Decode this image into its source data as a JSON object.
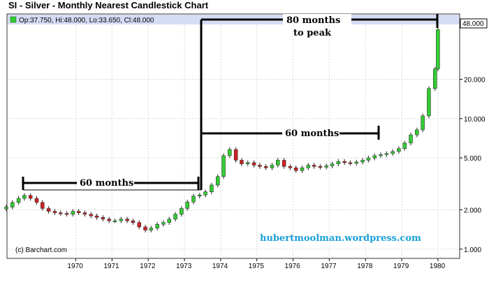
{
  "title": "SI - Silver - Monthly Nearest Candlestick Chart",
  "ohlc_legend": "Op:37.750, Hi:48.000, Lo:33.650, Cl:48.000",
  "credit": "(c) Barchart.com",
  "watermark": "hubertmoolman.wordpress.com",
  "annotations": {
    "peak_label_line1": "80 months",
    "peak_label_line2": "to peak",
    "mid_label": "60 months",
    "left_label": "60 months"
  },
  "colors": {
    "up": "#33cc33",
    "down": "#cc2222",
    "legend_bg": "#d6dcf5",
    "frame": "#333333",
    "grid": "#d8d8d8"
  },
  "chart_data": {
    "type": "candlestick",
    "title": "SI - Silver - Monthly Nearest Candlestick Chart",
    "x_ticks": [
      "1970",
      "1971",
      "1972",
      "1973",
      "1974",
      "1975",
      "1976",
      "1977",
      "1978",
      "1979",
      "1980"
    ],
    "y_ticks": [
      "1.000",
      "2.000",
      "5.000",
      "10.000",
      "20.000"
    ],
    "y_scale": "log",
    "ylim": [
      0.85,
      52
    ],
    "xlim": [
      1968.1,
      1980.6
    ],
    "last_value_label": "48.000",
    "grid": true,
    "series": [
      {
        "name": "",
        "points": [
          [
            1968.08,
            2.1
          ],
          [
            1968.25,
            2.28
          ],
          [
            1968.42,
            2.45
          ],
          [
            1968.58,
            2.58
          ],
          [
            1968.75,
            2.45
          ],
          [
            1968.92,
            2.28
          ],
          [
            1969.08,
            2.05
          ],
          [
            1969.25,
            1.95
          ],
          [
            1969.42,
            1.9
          ],
          [
            1969.58,
            1.88
          ],
          [
            1969.75,
            1.85
          ],
          [
            1969.92,
            1.95
          ],
          [
            1970.08,
            1.9
          ],
          [
            1970.25,
            1.85
          ],
          [
            1970.42,
            1.8
          ],
          [
            1970.58,
            1.75
          ],
          [
            1970.75,
            1.7
          ],
          [
            1970.92,
            1.65
          ],
          [
            1971.08,
            1.65
          ],
          [
            1971.25,
            1.7
          ],
          [
            1971.42,
            1.65
          ],
          [
            1971.58,
            1.6
          ],
          [
            1971.75,
            1.48
          ],
          [
            1971.92,
            1.4
          ],
          [
            1972.08,
            1.45
          ],
          [
            1972.25,
            1.55
          ],
          [
            1972.42,
            1.6
          ],
          [
            1972.58,
            1.7
          ],
          [
            1972.75,
            1.85
          ],
          [
            1972.92,
            2.05
          ],
          [
            1973.08,
            2.3
          ],
          [
            1973.25,
            2.55
          ],
          [
            1973.42,
            2.6
          ],
          [
            1973.58,
            2.75
          ],
          [
            1973.75,
            3.1
          ],
          [
            1973.92,
            3.6
          ],
          [
            1974.08,
            5.2
          ],
          [
            1974.25,
            5.8
          ],
          [
            1974.42,
            4.8
          ],
          [
            1974.58,
            4.5
          ],
          [
            1974.75,
            4.6
          ],
          [
            1974.92,
            4.4
          ],
          [
            1975.08,
            4.3
          ],
          [
            1975.25,
            4.2
          ],
          [
            1975.42,
            4.4
          ],
          [
            1975.58,
            4.8
          ],
          [
            1975.75,
            4.3
          ],
          [
            1975.92,
            4.2
          ],
          [
            1976.08,
            4.0
          ],
          [
            1976.25,
            4.2
          ],
          [
            1976.42,
            4.4
          ],
          [
            1976.58,
            4.3
          ],
          [
            1976.75,
            4.25
          ],
          [
            1976.92,
            4.35
          ],
          [
            1977.08,
            4.5
          ],
          [
            1977.25,
            4.7
          ],
          [
            1977.42,
            4.6
          ],
          [
            1977.58,
            4.55
          ],
          [
            1977.75,
            4.65
          ],
          [
            1977.92,
            4.8
          ],
          [
            1978.08,
            5.0
          ],
          [
            1978.25,
            5.2
          ],
          [
            1978.42,
            5.3
          ],
          [
            1978.58,
            5.4
          ],
          [
            1978.75,
            5.6
          ],
          [
            1978.92,
            5.9
          ],
          [
            1979.08,
            6.5
          ],
          [
            1979.25,
            7.5
          ],
          [
            1979.42,
            8.2
          ],
          [
            1979.58,
            10.5
          ],
          [
            1979.75,
            17.0
          ],
          [
            1979.92,
            24.0
          ],
          [
            1980.0,
            48.0
          ]
        ]
      }
    ]
  }
}
